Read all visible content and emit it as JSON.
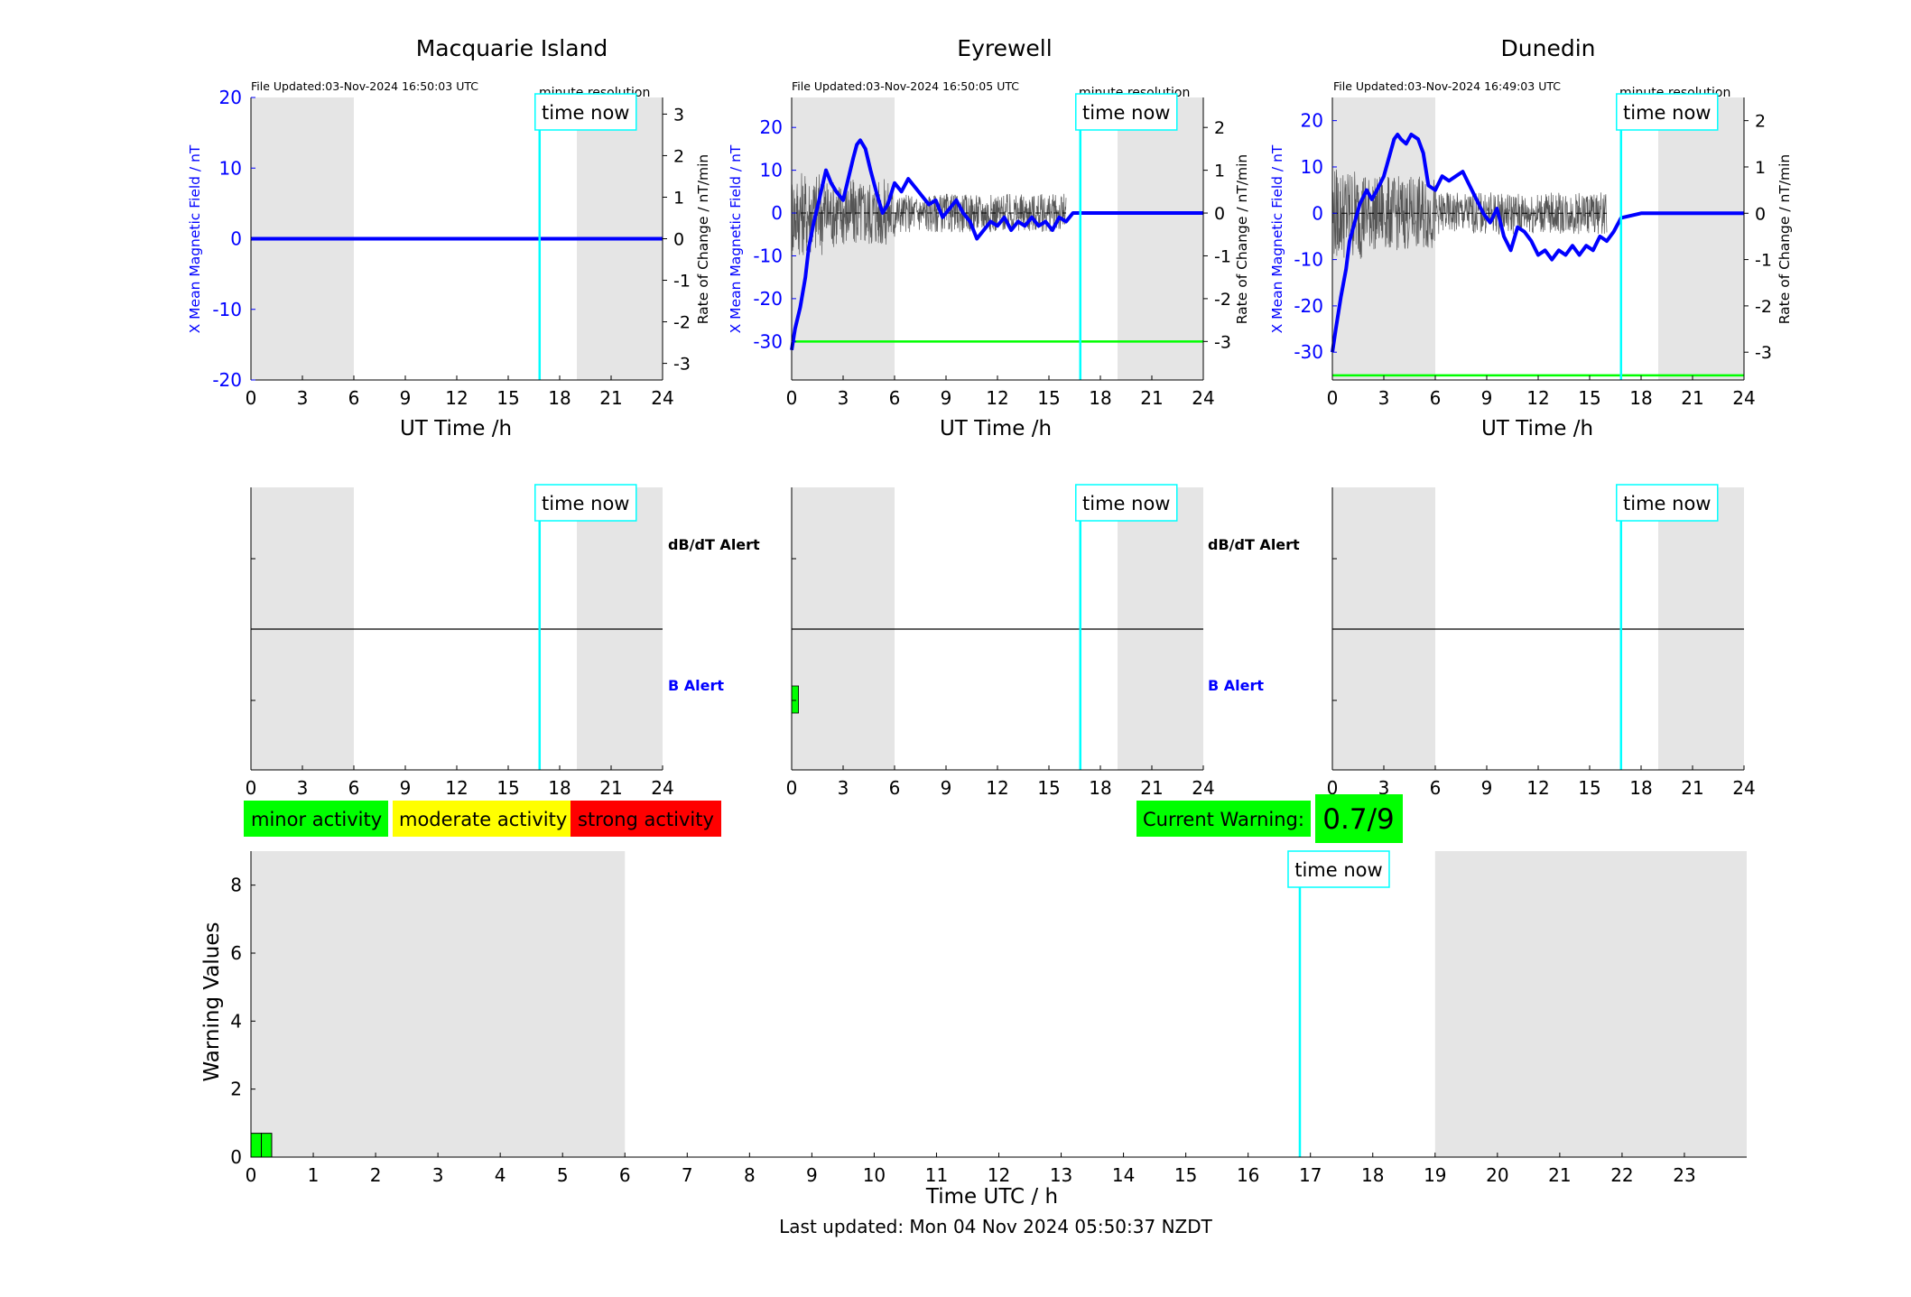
{
  "colors": {
    "x_field_line": "#0000ff",
    "rate_line": "#555555",
    "threshold_line": "#00ff00",
    "time_now": "#00ffff",
    "night_shade": "#e5e5e5",
    "minor": "#00ff00",
    "moderate": "#ffff00",
    "strong": "#ff0000",
    "current_warning_bg": "#00ff00"
  },
  "time_now_label": "time now",
  "time_now_hour": 16.83,
  "x_ticks_24h": [
    "0",
    "3",
    "6",
    "9",
    "12",
    "15",
    "18",
    "21",
    "24"
  ],
  "chart_data": [
    {
      "type": "line",
      "station": "Macquarie Island",
      "title": "Macquarie Island",
      "file_updated": "File Updated:03-Nov-2024 16:50:03 UTC",
      "resolution": "minute resolution",
      "xlabel": "UT Time /h",
      "ylabel_left": "X Mean Magnetic Field / nT",
      "ylabel_right": "Rate of Change / nT/min",
      "xlim": [
        0,
        24
      ],
      "ylim_left": [
        -20,
        20
      ],
      "yticks_left": [
        "20",
        "10",
        "0",
        "-10",
        "-20"
      ],
      "yticks_left_values": [
        20,
        10,
        0,
        -10,
        -20
      ],
      "ylim_right": [
        -3.4,
        3.4
      ],
      "yticks_right": [
        "3",
        "2",
        "1",
        "0",
        "-1",
        "-2",
        "-3"
      ],
      "yticks_right_values": [
        3,
        2,
        1,
        0,
        -1,
        -2,
        -3
      ],
      "night_shade": [
        [
          0,
          6
        ],
        [
          19,
          24
        ]
      ],
      "threshold": null,
      "series": [
        {
          "name": "X Mean Magnetic Field",
          "x": [
            0,
            24
          ],
          "y": [
            0,
            0
          ]
        }
      ],
      "rate_noise_until": 0
    },
    {
      "type": "line",
      "station": "Eyrewell",
      "title": "Eyrewell",
      "file_updated": "File Updated:03-Nov-2024 16:50:05 UTC",
      "resolution": "minute resolution",
      "xlabel": "UT Time /h",
      "ylabel_left": "X Mean Magnetic Field / nT",
      "ylabel_right": "Rate of Change / nT/min",
      "xlim": [
        0,
        24
      ],
      "ylim_left": [
        -39,
        27
      ],
      "yticks_left": [
        "20",
        "10",
        "0",
        "-10",
        "-20",
        "-30"
      ],
      "yticks_left_values": [
        20,
        10,
        0,
        -10,
        -20,
        -30
      ],
      "ylim_right": [
        -3.9,
        2.7
      ],
      "yticks_right": [
        "2",
        "1",
        "0",
        "-1",
        "-2",
        "-3"
      ],
      "yticks_right_values": [
        2,
        1,
        0,
        -1,
        -2,
        -3
      ],
      "night_shade": [
        [
          0,
          6
        ],
        [
          19,
          24
        ]
      ],
      "threshold": -30,
      "series": [
        {
          "name": "X Mean Magnetic Field",
          "x": [
            0,
            0.2,
            0.5,
            0.8,
            1.0,
            1.3,
            1.6,
            2.0,
            2.3,
            2.6,
            3.0,
            3.3,
            3.6,
            3.8,
            4.0,
            4.3,
            4.6,
            5.0,
            5.3,
            5.6,
            6.0,
            6.4,
            6.8,
            7.2,
            7.6,
            8.0,
            8.4,
            8.8,
            9.2,
            9.6,
            10.0,
            10.4,
            10.8,
            11.2,
            11.6,
            12.0,
            12.4,
            12.8,
            13.2,
            13.6,
            14.0,
            14.4,
            14.8,
            15.2,
            15.6,
            16.0,
            16.4,
            16.83,
            18,
            20,
            22,
            24
          ],
          "y": [
            -32,
            -27,
            -22,
            -15,
            -8,
            -2,
            3,
            10,
            7,
            5,
            3,
            8,
            13,
            16,
            17,
            15,
            10,
            4,
            0,
            2,
            7,
            5,
            8,
            6,
            4,
            2,
            3,
            -1,
            1,
            3,
            0,
            -2,
            -6,
            -4,
            -2,
            -3,
            -1,
            -4,
            -2,
            -3,
            -1,
            -3,
            -2,
            -4,
            -1,
            -2,
            0,
            0,
            0,
            0,
            0,
            0
          ]
        }
      ],
      "rate_noise_until": 16
    },
    {
      "type": "line",
      "station": "Dunedin",
      "title": "Dunedin",
      "file_updated": "File Updated:03-Nov-2024 16:49:03 UTC",
      "resolution": "minute resolution",
      "xlabel": "UT Time /h",
      "ylabel_left": "X Mean Magnetic Field / nT",
      "ylabel_right": "Rate of Change / nT/min",
      "xlim": [
        0,
        24
      ],
      "ylim_left": [
        -36,
        25
      ],
      "yticks_left": [
        "20",
        "10",
        "0",
        "-10",
        "-20",
        "-30"
      ],
      "yticks_left_values": [
        20,
        10,
        0,
        -10,
        -20,
        -30
      ],
      "ylim_right": [
        -3.6,
        2.5
      ],
      "yticks_right": [
        "2",
        "1",
        "0",
        "-1",
        "-2",
        "-3"
      ],
      "yticks_right_values": [
        2,
        1,
        0,
        -1,
        -2,
        -3
      ],
      "night_shade": [
        [
          0,
          6
        ],
        [
          19,
          24
        ]
      ],
      "threshold": -35,
      "series": [
        {
          "name": "X Mean Magnetic Field",
          "x": [
            0,
            0.2,
            0.5,
            0.8,
            1.0,
            1.3,
            1.6,
            2.0,
            2.3,
            2.6,
            3.0,
            3.3,
            3.6,
            3.8,
            4.0,
            4.3,
            4.6,
            5.0,
            5.3,
            5.6,
            6.0,
            6.4,
            6.8,
            7.2,
            7.6,
            8.0,
            8.4,
            8.8,
            9.2,
            9.6,
            10.0,
            10.4,
            10.8,
            11.2,
            11.6,
            12.0,
            12.4,
            12.8,
            13.2,
            13.6,
            14.0,
            14.4,
            14.8,
            15.2,
            15.6,
            16.0,
            16.4,
            16.83,
            18,
            20,
            22,
            24
          ],
          "y": [
            -30,
            -25,
            -18,
            -12,
            -6,
            -2,
            2,
            5,
            3,
            5,
            8,
            12,
            16,
            17,
            16,
            15,
            17,
            16,
            13,
            6,
            5,
            8,
            7,
            8,
            9,
            6,
            3,
            0,
            -2,
            1,
            -5,
            -8,
            -3,
            -4,
            -6,
            -9,
            -8,
            -10,
            -8,
            -9,
            -7,
            -9,
            -7,
            -8,
            -5,
            -6,
            -4,
            -1,
            0,
            0,
            0,
            0
          ]
        }
      ],
      "rate_noise_until": 16
    },
    {
      "type": "bar",
      "panel": "alerts",
      "station": "Macquarie Island",
      "xlim": [
        0,
        24
      ],
      "upper_label": "dB/dT Alert",
      "lower_label": "B Alert",
      "night_shade": [
        [
          0,
          6
        ],
        [
          19,
          24
        ]
      ],
      "b_alert_bars": []
    },
    {
      "type": "bar",
      "panel": "alerts",
      "station": "Eyrewell",
      "xlim": [
        0,
        24
      ],
      "upper_label": "dB/dT Alert",
      "lower_label": "B Alert",
      "night_shade": [
        [
          0,
          6
        ],
        [
          19,
          24
        ]
      ],
      "b_alert_bars": [
        {
          "x0": 0,
          "x1": 0.4,
          "level": "minor"
        }
      ]
    },
    {
      "type": "bar",
      "panel": "alerts",
      "station": "Dunedin",
      "xlim": [
        0,
        24
      ],
      "night_shade": [
        [
          0,
          6
        ],
        [
          19,
          24
        ]
      ],
      "b_alert_bars": []
    },
    {
      "type": "bar",
      "panel": "warning",
      "xlabel": "Time UTC / h",
      "ylabel": "Warning Values",
      "xlim": [
        0,
        24
      ],
      "ylim": [
        0,
        9
      ],
      "x_ticks": [
        "0",
        "1",
        "2",
        "3",
        "4",
        "5",
        "6",
        "7",
        "8",
        "9",
        "10",
        "11",
        "12",
        "13",
        "14",
        "15",
        "16",
        "17",
        "18",
        "19",
        "20",
        "21",
        "22",
        "23"
      ],
      "y_ticks": [
        "0",
        "2",
        "4",
        "6",
        "8"
      ],
      "y_tick_values": [
        0,
        2,
        4,
        6,
        8
      ],
      "night_shade": [
        [
          0,
          6
        ],
        [
          19,
          24
        ]
      ],
      "bars": [
        {
          "x0": 0,
          "x1": 0.167,
          "value": 0.7
        },
        {
          "x0": 0.167,
          "x1": 0.333,
          "value": 0.7
        }
      ]
    }
  ],
  "legend": {
    "minor": "minor activity",
    "moderate": "moderate activity",
    "strong": "strong activity"
  },
  "current_warning": {
    "label": "Current Warning:",
    "value": "0.7/9"
  },
  "last_updated": "Last updated: Mon 04 Nov 2024 05:50:37 NZDT"
}
